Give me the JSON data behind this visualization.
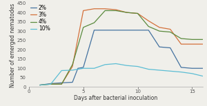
{
  "xlabel": "Days after bacterial inoculation",
  "ylabel": "Number of emerged nematodes",
  "ylim": [
    0,
    450
  ],
  "xlim": [
    0,
    16
  ],
  "yticks": [
    0,
    50,
    100,
    150,
    200,
    250,
    300,
    350,
    400,
    450
  ],
  "xticks": [
    0,
    5,
    10,
    15
  ],
  "series": {
    "2%": {
      "color": "#4472a0",
      "x": [
        1,
        2,
        3,
        4,
        4.5,
        5,
        6,
        7,
        8,
        9,
        10,
        11,
        12,
        13,
        14,
        15,
        16
      ],
      "y": [
        10,
        18,
        22,
        25,
        100,
        105,
        305,
        305,
        305,
        305,
        305,
        305,
        215,
        210,
        105,
        100,
        100
      ]
    },
    "3%": {
      "color": "#d4703a",
      "x": [
        1,
        2,
        3,
        4,
        5,
        6,
        7,
        8,
        9,
        10,
        11,
        12,
        13,
        14,
        15,
        16
      ],
      "y": [
        10,
        15,
        15,
        110,
        410,
        420,
        420,
        415,
        400,
        395,
        355,
        320,
        310,
        230,
        230,
        230
      ]
    },
    "4%": {
      "color": "#5a8a3d",
      "x": [
        1,
        2,
        3,
        4,
        5,
        6,
        7,
        8,
        9,
        10,
        11,
        12,
        13,
        14,
        15,
        16
      ],
      "y": [
        10,
        15,
        15,
        120,
        320,
        345,
        410,
        410,
        400,
        395,
        325,
        300,
        295,
        260,
        255,
        255
      ]
    },
    "10%": {
      "color": "#5bbdd4",
      "x": [
        1,
        2,
        3,
        4,
        5,
        6,
        7,
        8,
        9,
        10,
        11,
        12,
        13,
        14,
        15,
        16
      ],
      "y": [
        10,
        15,
        88,
        90,
        100,
        100,
        120,
        125,
        115,
        110,
        95,
        90,
        85,
        80,
        72,
        58
      ]
    }
  },
  "legend_loc": "upper left",
  "font_size": 5.5,
  "tick_font_size": 5.0,
  "line_width": 0.9,
  "bg_color": "#f0efea"
}
